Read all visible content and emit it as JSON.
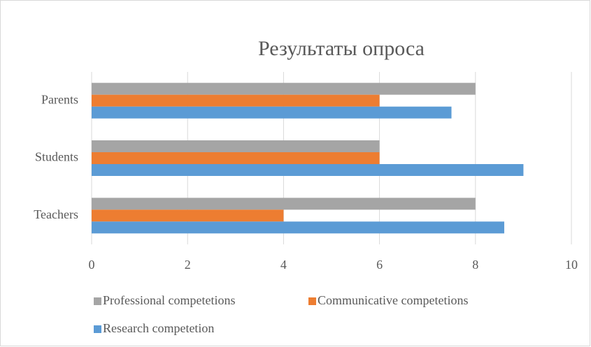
{
  "chart_data": {
    "type": "bar",
    "orientation": "horizontal",
    "title": "Результаты опроса",
    "categories": [
      "Teachers",
      "Students",
      "Parents"
    ],
    "series": [
      {
        "name": "Professional competetions",
        "color": "#a5a5a5",
        "values": [
          8,
          6,
          8
        ]
      },
      {
        "name": "Communicative competetions",
        "color": "#ed7d31",
        "values": [
          4,
          6,
          6
        ]
      },
      {
        "name": "Research competetion",
        "color": "#5b9bd5",
        "values": [
          8.6,
          9,
          7.5
        ]
      }
    ],
    "xlim": [
      0,
      10
    ],
    "xticks": [
      0,
      2,
      4,
      6,
      8,
      10
    ],
    "grid": true,
    "legend": "bottom"
  }
}
